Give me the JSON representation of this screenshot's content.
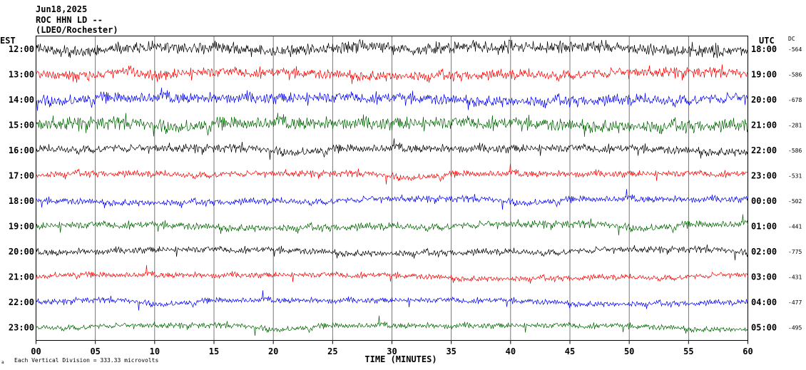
{
  "header": {
    "line1": "Jun18,2025",
    "line2": "ROC HHN LD --",
    "line3": "(LDEO/Rochester)"
  },
  "left_axis_title": "EST",
  "right_axis_title": "UTC",
  "dc_title": "DC",
  "footer": {
    "vertical_division": "Each Vertical Division =  333.33 microvolts"
  },
  "colors": {
    "black": "#000000",
    "red": "#ff0000",
    "blue": "#0000ff",
    "green": "#006400"
  },
  "chart_data": {
    "type": "line",
    "subtype": "helicorder",
    "xlabel": "TIME (MINUTES)",
    "xlim": [
      0,
      60
    ],
    "x_ticks": [
      0,
      5,
      10,
      15,
      20,
      25,
      30,
      35,
      40,
      45,
      50,
      55,
      60
    ],
    "x_tick_labels": [
      "00",
      "05",
      "10",
      "15",
      "20",
      "25",
      "30",
      "35",
      "40",
      "45",
      "50",
      "55",
      "60"
    ],
    "color_cycle": [
      "black",
      "red",
      "blue",
      "green"
    ],
    "rows": [
      {
        "est": "12:00",
        "utc": "18:00",
        "dc": "-564"
      },
      {
        "est": "13:00",
        "utc": "19:00",
        "dc": "-586"
      },
      {
        "est": "14:00",
        "utc": "20:00",
        "dc": "-678"
      },
      {
        "est": "15:00",
        "utc": "21:00",
        "dc": "-281"
      },
      {
        "est": "16:00",
        "utc": "22:00",
        "dc": "-586"
      },
      {
        "est": "17:00",
        "utc": "23:00",
        "dc": "-531"
      },
      {
        "est": "18:00",
        "utc": "00:00",
        "dc": "-502"
      },
      {
        "est": "19:00",
        "utc": "01:00",
        "dc": "-441"
      },
      {
        "est": "20:00",
        "utc": "02:00",
        "dc": "-775"
      },
      {
        "est": "21:00",
        "utc": "03:00",
        "dc": "-431"
      },
      {
        "est": "22:00",
        "utc": "04:00",
        "dc": "-477"
      },
      {
        "est": "23:00",
        "utc": "05:00",
        "dc": "-495"
      }
    ]
  }
}
